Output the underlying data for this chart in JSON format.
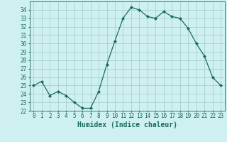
{
  "x": [
    0,
    1,
    2,
    3,
    4,
    5,
    6,
    7,
    8,
    9,
    10,
    11,
    12,
    13,
    14,
    15,
    16,
    17,
    18,
    19,
    20,
    21,
    22,
    23
  ],
  "y": [
    25.0,
    25.5,
    23.8,
    24.3,
    23.8,
    23.0,
    22.3,
    22.3,
    24.3,
    27.5,
    30.3,
    33.0,
    34.3,
    34.0,
    33.2,
    33.0,
    33.8,
    33.2,
    33.0,
    31.8,
    30.0,
    28.5,
    26.0,
    25.0
  ],
  "line_color": "#1a6b5a",
  "marker": "D",
  "markersize": 2.0,
  "linewidth": 0.9,
  "background_color": "#cff0f0",
  "grid_color": "#a0c8c8",
  "xlabel": "Humidex (Indice chaleur)",
  "xlim": [
    -0.5,
    23.5
  ],
  "ylim": [
    22,
    35
  ],
  "yticks": [
    22,
    23,
    24,
    25,
    26,
    27,
    28,
    29,
    30,
    31,
    32,
    33,
    34
  ],
  "xticks": [
    0,
    1,
    2,
    3,
    4,
    5,
    6,
    7,
    8,
    9,
    10,
    11,
    12,
    13,
    14,
    15,
    16,
    17,
    18,
    19,
    20,
    21,
    22,
    23
  ],
  "tick_fontsize": 5.5,
  "xlabel_fontsize": 7.0
}
